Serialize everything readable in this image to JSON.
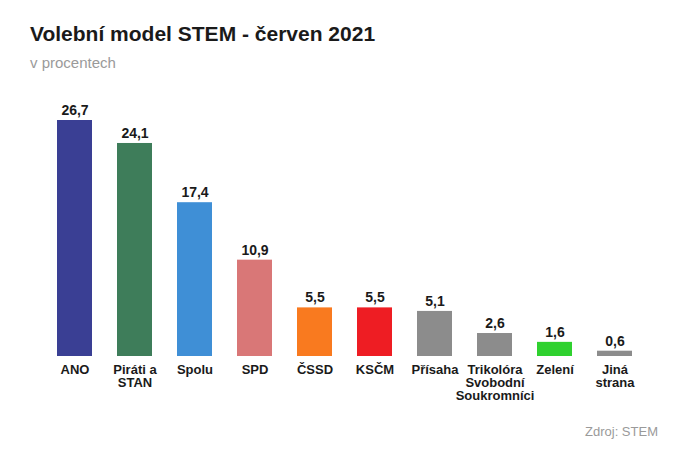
{
  "chart_data": {
    "type": "bar",
    "title": "Volební model STEM - červen 2021",
    "subtitle": "v procentech",
    "caption": "Zdroj: STEM",
    "categories": [
      "ANO",
      "Piráti a\nSTAN",
      "Spolu",
      "SPD",
      "ČSSD",
      "KSČM",
      "Přísaha",
      "Trikolóra\nSvobodní\nSoukromníci",
      "Zelení",
      "Jiná\nstrana"
    ],
    "values": [
      26.7,
      24.1,
      17.4,
      10.9,
      5.5,
      5.5,
      5.1,
      2.6,
      1.6,
      0.6
    ],
    "value_labels": [
      "26,7",
      "24,1",
      "17,4",
      "10,9",
      "5,5",
      "5,5",
      "5,1",
      "2,6",
      "1,6",
      "0,6"
    ],
    "colors": [
      "#3a3f94",
      "#3e7d5a",
      "#3f8fd6",
      "#d97777",
      "#f97a1f",
      "#ee1d23",
      "#8c8c8c",
      "#8c8c8c",
      "#2fd12f",
      "#8c8c8c"
    ],
    "ylim": [
      0,
      26.7
    ],
    "data_labels": true,
    "tick_labels": "x",
    "grid": false
  }
}
